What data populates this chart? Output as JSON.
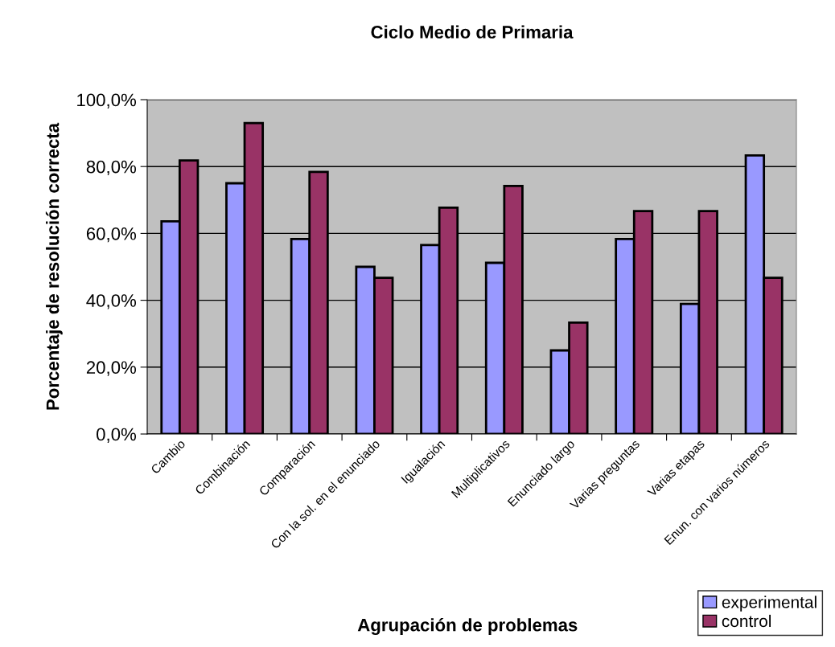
{
  "chart_data": {
    "type": "bar",
    "title": "Ciclo Medio de Primaria",
    "xlabel": "Agrupación de problemas",
    "ylabel": "Porcentaje de resolución correcta",
    "categories": [
      "Cambio",
      "Combinación",
      "Comparación",
      "Con la sol. en el enunciado",
      "Igualación",
      "Multiplicativos",
      "Enunciado largo",
      "Varias preguntas",
      "Varias etapas",
      "Enun. con varios números"
    ],
    "series": [
      {
        "name": "experimental",
        "color": "#9999ff",
        "values": [
          63.6,
          75.0,
          58.3,
          50.0,
          56.5,
          51.2,
          25.0,
          58.3,
          38.9,
          83.3
        ]
      },
      {
        "name": "control",
        "color": "#993366",
        "values": [
          81.8,
          93.0,
          78.4,
          46.7,
          67.7,
          74.2,
          33.3,
          66.7,
          66.7,
          46.7
        ]
      }
    ],
    "ylim": [
      0,
      100
    ],
    "yticks": [
      {
        "value": 0,
        "label": "0,0%"
      },
      {
        "value": 20,
        "label": "20,0%"
      },
      {
        "value": 40,
        "label": "40,0%"
      },
      {
        "value": 60,
        "label": "60,0%"
      },
      {
        "value": 80,
        "label": "80,0%"
      },
      {
        "value": 100,
        "label": "100,0%"
      }
    ],
    "grid": "y",
    "legend": "bottom right"
  }
}
